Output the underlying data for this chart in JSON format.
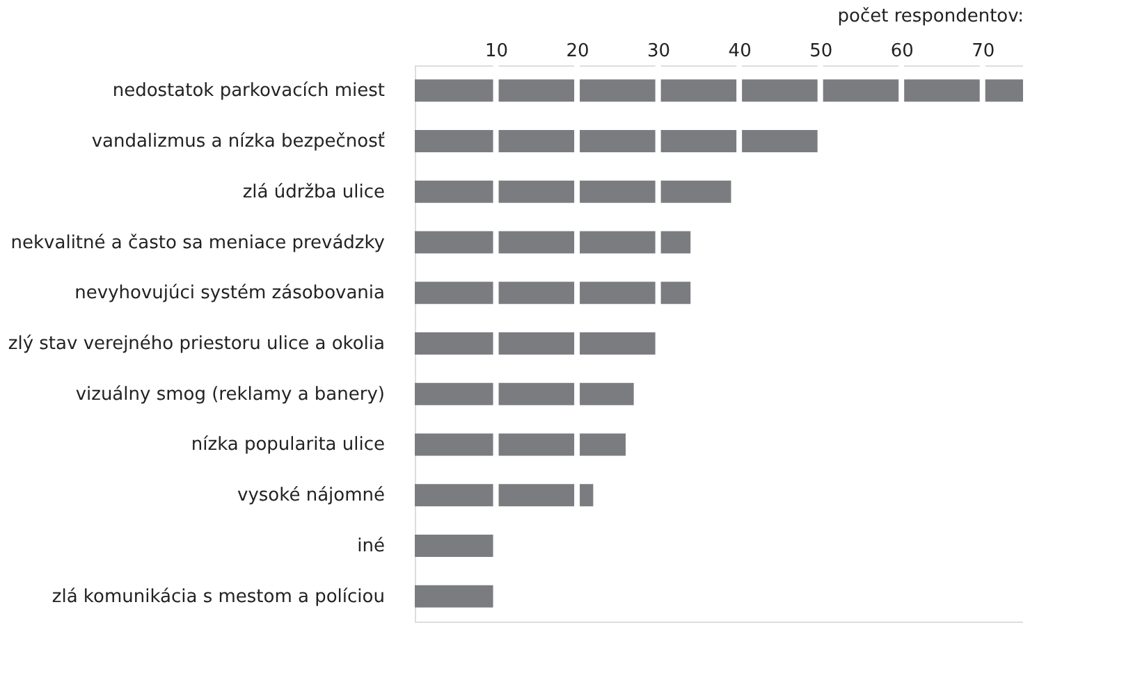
{
  "chart_data": {
    "type": "bar",
    "orientation": "horizontal",
    "xlabel": "počet respondentov:",
    "categories": [
      "nedostatok parkovacích miest",
      "vandalizmus a nízka bezpečnosť",
      "zlá údržba ulice",
      "nekvalitné a často sa meniace prevádzky",
      "nevyhovujúci systém zásobovania",
      "zlý stav verejného priestoru ulice a okolia",
      "vizuálny smog (reklamy a banery)",
      "nízka popularita ulice",
      "vysoké nájomné",
      "iné",
      "zlá komunikácia s mestom a políciou"
    ],
    "values": [
      75,
      50,
      39,
      34,
      34,
      30,
      27,
      26,
      22,
      10,
      10
    ],
    "color": "#7b7c80",
    "xlim": [
      0,
      75
    ],
    "xticks": [
      10,
      20,
      30,
      40,
      50,
      60,
      70
    ],
    "grid": "x"
  }
}
